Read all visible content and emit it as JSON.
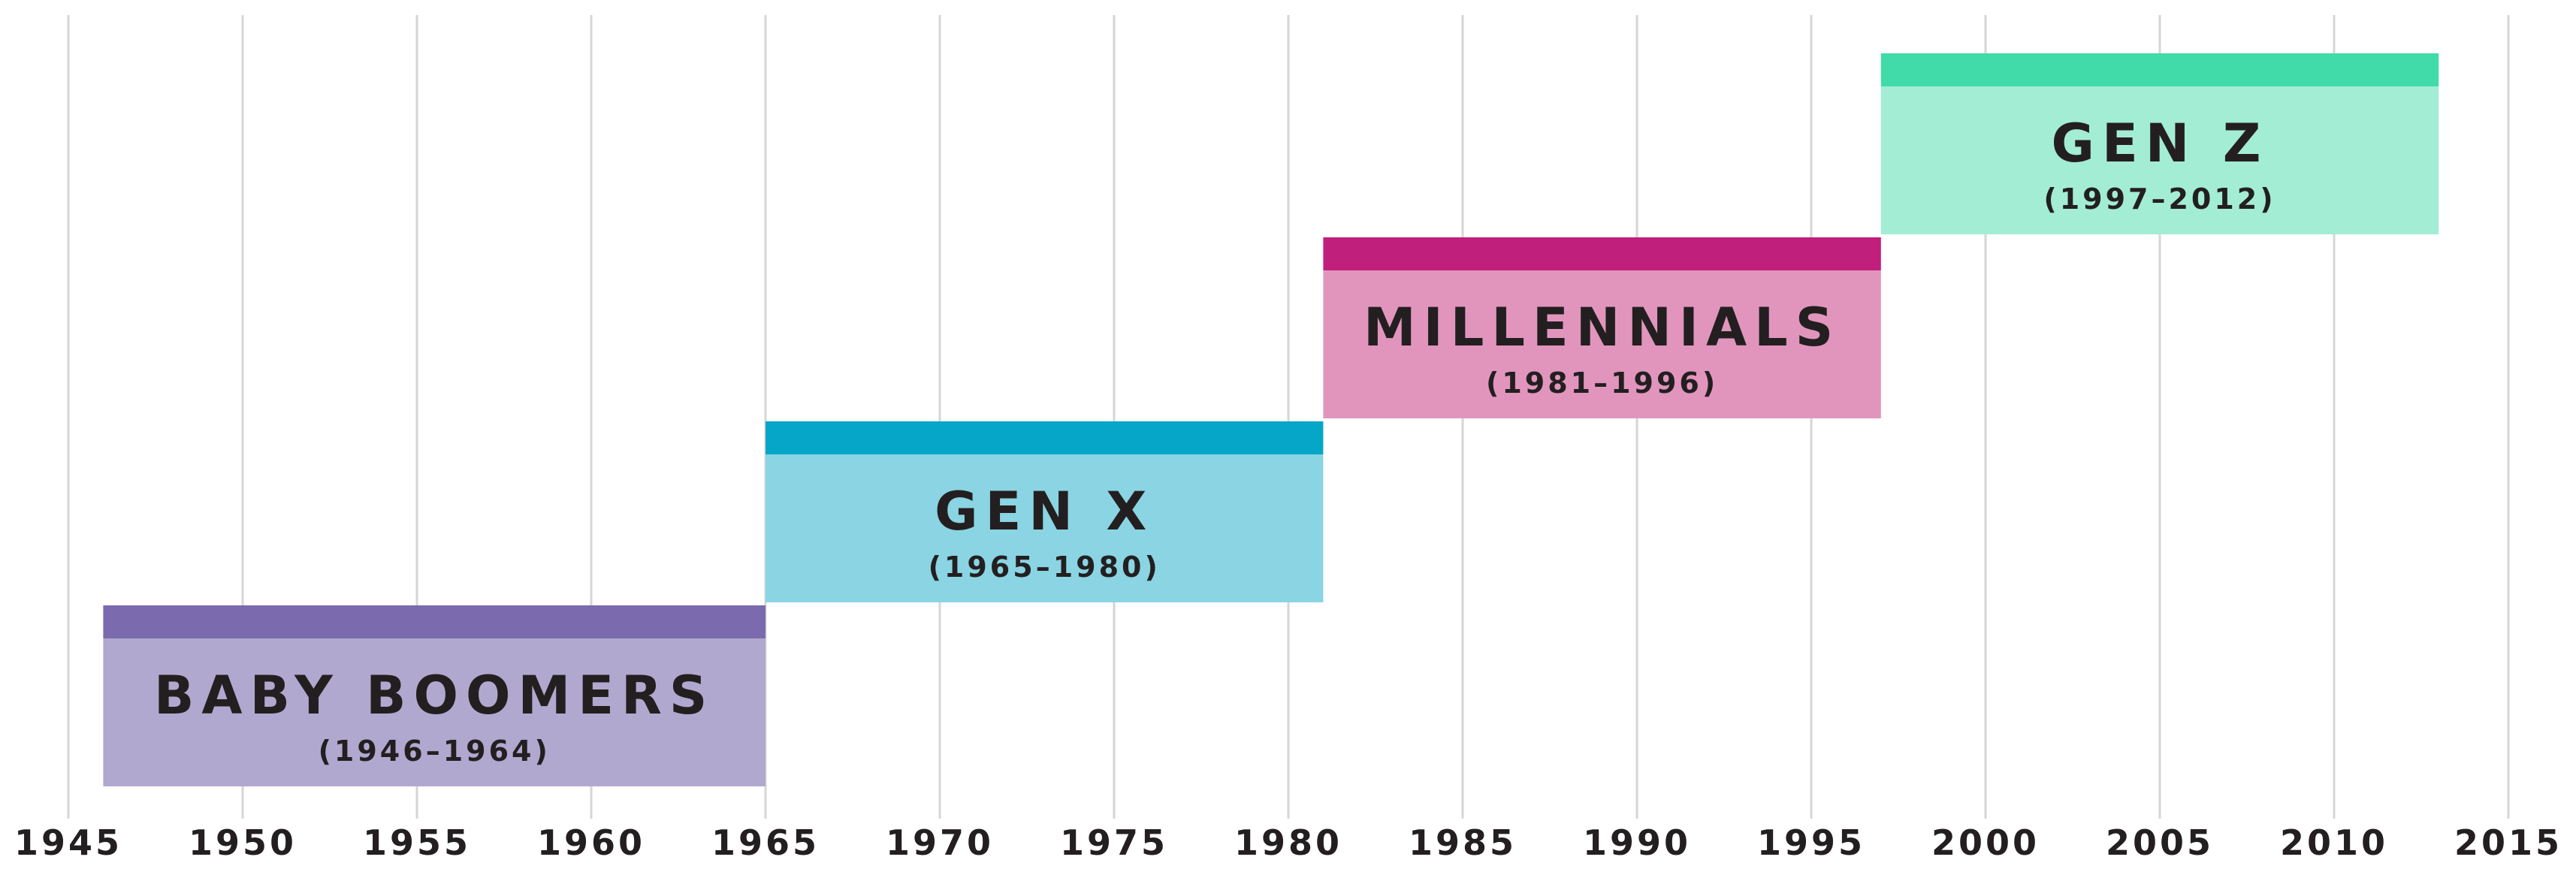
{
  "chart_data": {
    "type": "bar",
    "orientation": "horizontal-timeline",
    "title": "",
    "xlabel": "",
    "ylabel": "",
    "xlim": [
      1945,
      2015
    ],
    "x_ticks": [
      1945,
      1950,
      1955,
      1960,
      1965,
      1970,
      1975,
      1980,
      1985,
      1990,
      1995,
      2000,
      2005,
      2010,
      2015
    ],
    "grid": true,
    "legend": "none",
    "series": [
      {
        "name": "BABY BOOMERS",
        "range_label": "(1946–1964)",
        "start": 1946,
        "end": 1965,
        "color_dark": "#7b6aae",
        "color_light": "#b1a8cf"
      },
      {
        "name": "GEN X",
        "range_label": "(1965–1980)",
        "start": 1965,
        "end": 1981,
        "color_dark": "#05a6c8",
        "color_light": "#8ad4e3"
      },
      {
        "name": "MILLENNIALS",
        "range_label": "(1981–1996)",
        "start": 1981,
        "end": 1997,
        "color_dark": "#c01f7c",
        "color_light": "#e195bd"
      },
      {
        "name": "GEN Z",
        "range_label": "(1997–2012)",
        "start": 1997,
        "end": 2013,
        "color_dark": "#40dba8",
        "color_light": "#a3edd4"
      }
    ]
  }
}
